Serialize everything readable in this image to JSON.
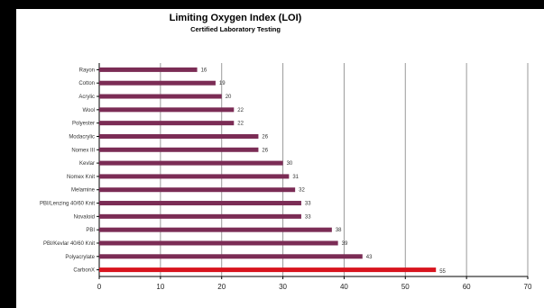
{
  "chart_data": {
    "type": "bar",
    "orientation": "horizontal",
    "title": "Limiting Oxygen Index (LOI)",
    "subtitle": "Certified Laboratory Testing",
    "xlabel": "",
    "ylabel": "",
    "xlim": [
      0,
      70
    ],
    "xticks": [
      "0",
      "10",
      "20",
      "30",
      "40",
      "50",
      "60",
      "70"
    ],
    "grid": "vertical",
    "categories": [
      "Rayon",
      "Cotton",
      "Acrylic",
      "Wool",
      "Polyester",
      "Modacrylic",
      "Nomex III",
      "Kevlar",
      "Nomex Knit",
      "Melamine",
      "PBI/Lenzing 40/60 Knit",
      "Novaloid",
      "PBI",
      "PBI/Kevlar 40/60 Knit",
      "Polyacrylate",
      "CarbonX"
    ],
    "values": [
      16,
      19,
      20,
      22,
      22,
      26,
      26,
      30,
      31,
      32,
      33,
      33,
      38,
      39,
      43,
      55
    ],
    "value_labels": [
      "16",
      "19",
      "20",
      "22",
      "22",
      "26",
      "26",
      "30",
      "31",
      "32",
      "33",
      "33",
      "38",
      "39",
      "43",
      "55"
    ],
    "colors": {
      "bar": "#7b2c55",
      "highlight_bar": "#d8141e",
      "grid": "#9a9a9a",
      "background": "#ffffff",
      "frame": "#000000"
    },
    "highlight_category": "CarbonX"
  }
}
